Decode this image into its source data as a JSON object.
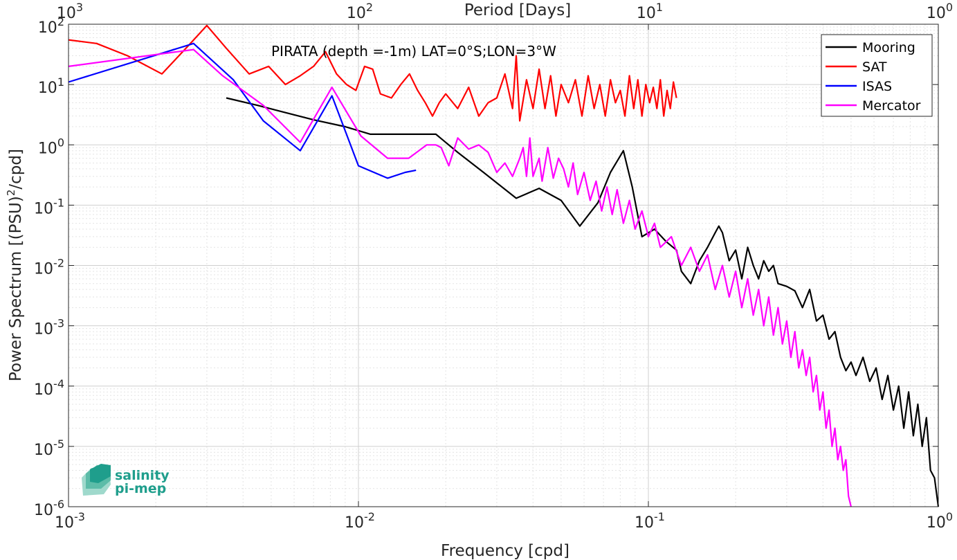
{
  "chart_data": {
    "type": "line",
    "title": "PIRATA (depth =-1m) LAT=0°S;LON=3°W",
    "xlabel": "Frequency [cpd]",
    "ylabel_main": "Power Spectrum [(PSU)",
    "ylabel_sup": "2",
    "ylabel_tail": "/cpd]",
    "top_xlabel": "Period [Days]",
    "xscale": "log",
    "yscale": "log",
    "xlim": [
      0.001,
      1
    ],
    "ylim": [
      1e-06,
      100
    ],
    "grid": true,
    "legend_position": "top-right",
    "x_ticks": [
      {
        "value": 0.001,
        "base": "10",
        "exp": "-3"
      },
      {
        "value": 0.01,
        "base": "10",
        "exp": "-2"
      },
      {
        "value": 0.1,
        "base": "10",
        "exp": "-1"
      },
      {
        "value": 1,
        "base": "10",
        "exp": "0"
      }
    ],
    "top_ticks": [
      {
        "value": 0.001,
        "base": "10",
        "exp": "3"
      },
      {
        "value": 0.01,
        "base": "10",
        "exp": "2"
      },
      {
        "value": 0.1,
        "base": "10",
        "exp": "1"
      },
      {
        "value": 1,
        "base": "10",
        "exp": "0"
      }
    ],
    "y_ticks": [
      {
        "value": 100,
        "base": "10",
        "exp": "2"
      },
      {
        "value": 10,
        "base": "10",
        "exp": "1"
      },
      {
        "value": 1,
        "base": "10",
        "exp": "0"
      },
      {
        "value": 0.1,
        "base": "10",
        "exp": "-1"
      },
      {
        "value": 0.01,
        "base": "10",
        "exp": "-2"
      },
      {
        "value": 0.001,
        "base": "10",
        "exp": "-3"
      },
      {
        "value": 0.0001,
        "base": "10",
        "exp": "-4"
      },
      {
        "value": 1e-05,
        "base": "10",
        "exp": "-5"
      },
      {
        "value": 1e-06,
        "base": "10",
        "exp": "-6"
      }
    ],
    "series": [
      {
        "name": "Mooring",
        "color": "#000000",
        "x": [
          0.0035,
          0.0045,
          0.0055,
          0.007,
          0.009,
          0.011,
          0.014,
          0.0185,
          0.022,
          0.027,
          0.035,
          0.042,
          0.05,
          0.058,
          0.067,
          0.074,
          0.082,
          0.088,
          0.095,
          0.105,
          0.115,
          0.125,
          0.13,
          0.14,
          0.15,
          0.16,
          0.17,
          0.175,
          0.18,
          0.19,
          0.2,
          0.21,
          0.22,
          0.23,
          0.24,
          0.25,
          0.26,
          0.27,
          0.28,
          0.3,
          0.32,
          0.34,
          0.36,
          0.38,
          0.4,
          0.42,
          0.44,
          0.46,
          0.48,
          0.5,
          0.52,
          0.55,
          0.58,
          0.61,
          0.64,
          0.67,
          0.7,
          0.73,
          0.76,
          0.79,
          0.82,
          0.85,
          0.88,
          0.91,
          0.94,
          0.97,
          1.0
        ],
        "y": [
          6.0,
          4.5,
          3.5,
          2.6,
          2.0,
          1.5,
          1.5,
          1.5,
          0.75,
          0.35,
          0.13,
          0.19,
          0.12,
          0.045,
          0.11,
          0.35,
          0.8,
          0.2,
          0.03,
          0.04,
          0.025,
          0.018,
          0.008,
          0.005,
          0.012,
          0.02,
          0.035,
          0.045,
          0.035,
          0.012,
          0.018,
          0.006,
          0.02,
          0.01,
          0.006,
          0.012,
          0.008,
          0.01,
          0.005,
          0.0045,
          0.0038,
          0.002,
          0.004,
          0.0012,
          0.0015,
          0.0006,
          0.0008,
          0.0003,
          0.00018,
          0.00025,
          0.00015,
          0.0003,
          0.00012,
          0.0002,
          6e-05,
          0.00015,
          4e-05,
          0.0001,
          2e-05,
          8e-05,
          1.5e-05,
          5e-05,
          1e-05,
          3e-05,
          4e-06,
          3e-06,
          1e-06
        ]
      },
      {
        "name": "SAT",
        "color": "#ff0000",
        "x": [
          0.001,
          0.00125,
          0.0016,
          0.0021,
          0.0026,
          0.003,
          0.0035,
          0.0042,
          0.0049,
          0.0056,
          0.0063,
          0.007,
          0.0077,
          0.0084,
          0.0091,
          0.0098,
          0.0105,
          0.0112,
          0.0119,
          0.013,
          0.014,
          0.015,
          0.016,
          0.017,
          0.018,
          0.019,
          0.02,
          0.022,
          0.024,
          0.026,
          0.028,
          0.03,
          0.032,
          0.034,
          0.035,
          0.036,
          0.038,
          0.04,
          0.042,
          0.044,
          0.046,
          0.048,
          0.05,
          0.053,
          0.056,
          0.059,
          0.062,
          0.065,
          0.068,
          0.071,
          0.074,
          0.077,
          0.08,
          0.083,
          0.086,
          0.089,
          0.092,
          0.095,
          0.098,
          0.101,
          0.104,
          0.107,
          0.11,
          0.113,
          0.116,
          0.119,
          0.122,
          0.125
        ],
        "y": [
          55,
          48,
          30,
          15,
          45,
          95,
          40,
          15,
          20,
          10,
          14,
          20,
          35,
          15,
          10,
          8,
          20,
          18,
          7,
          6,
          10,
          15,
          8,
          5,
          3,
          5,
          7,
          4,
          9,
          3,
          5,
          6,
          15,
          4,
          30,
          2.5,
          12,
          4,
          18,
          4,
          14,
          3,
          10,
          5,
          12,
          3,
          14,
          4,
          10,
          3,
          12,
          5,
          8,
          3,
          14,
          4,
          12,
          3,
          10,
          5,
          9,
          4,
          12,
          3,
          8,
          4,
          11,
          6
        ]
      },
      {
        "name": "ISAS",
        "color": "#0000ff",
        "x": [
          0.001,
          0.0027,
          0.0037,
          0.0047,
          0.0063,
          0.0081,
          0.01,
          0.0126,
          0.0145,
          0.0158
        ],
        "y": [
          11,
          48,
          12,
          2.5,
          0.8,
          6.5,
          0.45,
          0.28,
          0.35,
          0.38
        ]
      },
      {
        "name": "Mercator",
        "color": "#ff00ff",
        "x": [
          0.001,
          0.0027,
          0.0034,
          0.0047,
          0.0063,
          0.0081,
          0.0102,
          0.0126,
          0.0149,
          0.0172,
          0.0185,
          0.0193,
          0.0205,
          0.022,
          0.024,
          0.026,
          0.028,
          0.03,
          0.032,
          0.034,
          0.036,
          0.037,
          0.038,
          0.039,
          0.04,
          0.042,
          0.043,
          0.045,
          0.047,
          0.049,
          0.051,
          0.053,
          0.055,
          0.057,
          0.06,
          0.063,
          0.066,
          0.069,
          0.072,
          0.075,
          0.078,
          0.082,
          0.086,
          0.09,
          0.095,
          0.1,
          0.105,
          0.11,
          0.12,
          0.13,
          0.14,
          0.15,
          0.16,
          0.17,
          0.18,
          0.19,
          0.2,
          0.21,
          0.22,
          0.23,
          0.24,
          0.25,
          0.26,
          0.27,
          0.28,
          0.29,
          0.3,
          0.31,
          0.32,
          0.33,
          0.34,
          0.35,
          0.36,
          0.37,
          0.38,
          0.39,
          0.4,
          0.41,
          0.42,
          0.43,
          0.44,
          0.45,
          0.46,
          0.47,
          0.48,
          0.49,
          0.5
        ],
        "y": [
          20,
          38,
          14,
          4.5,
          1.1,
          9,
          1.4,
          0.6,
          0.6,
          1.0,
          1.0,
          0.9,
          0.45,
          1.3,
          0.85,
          1.0,
          0.75,
          0.35,
          0.5,
          0.3,
          0.6,
          0.9,
          0.3,
          1.3,
          0.3,
          0.6,
          0.25,
          0.9,
          0.28,
          0.6,
          0.4,
          0.2,
          0.5,
          0.15,
          0.35,
          0.12,
          0.25,
          0.08,
          0.2,
          0.07,
          0.18,
          0.05,
          0.12,
          0.04,
          0.08,
          0.03,
          0.05,
          0.02,
          0.03,
          0.01,
          0.02,
          0.008,
          0.015,
          0.004,
          0.01,
          0.003,
          0.008,
          0.002,
          0.006,
          0.0015,
          0.004,
          0.001,
          0.003,
          0.0007,
          0.002,
          0.0005,
          0.0012,
          0.0003,
          0.0008,
          0.0002,
          0.0004,
          0.00015,
          0.0003,
          8e-05,
          0.00015,
          4e-05,
          8e-05,
          2e-05,
          4e-05,
          1e-05,
          2e-05,
          6e-06,
          1e-05,
          4e-06,
          6e-06,
          1.5e-06,
          1e-06
        ]
      }
    ]
  },
  "logo": {
    "line1": "salinity",
    "line2": "pi-mep"
  },
  "colors": {
    "logo_teal": "#1f9e8c",
    "axis": "#262626",
    "grid": "#d0d0d0"
  }
}
